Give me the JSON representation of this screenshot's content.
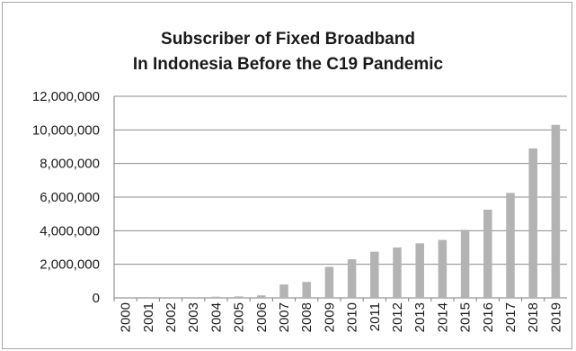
{
  "chart_data": {
    "type": "bar",
    "title_lines": [
      "Subscriber of Fixed Broadband",
      "In Indonesia Before the C19 Pandemic"
    ],
    "xlabel": "",
    "ylabel": "",
    "ylim": [
      0,
      12000000
    ],
    "yticks": [
      0,
      2000000,
      4000000,
      6000000,
      8000000,
      10000000,
      12000000
    ],
    "ytick_labels": [
      "0",
      "2,000,000",
      "4,000,000",
      "6,000,000",
      "8,000,000",
      "10,000,000",
      "12,000,000"
    ],
    "categories": [
      "2000",
      "2001",
      "2002",
      "2003",
      "2004",
      "2005",
      "2006",
      "2007",
      "2008",
      "2009",
      "2010",
      "2011",
      "2012",
      "2013",
      "2014",
      "2015",
      "2016",
      "2017",
      "2018",
      "2019"
    ],
    "values": [
      0,
      0,
      0,
      0,
      70000,
      90000,
      150000,
      800000,
      950000,
      1850000,
      2300000,
      2750000,
      3000000,
      3250000,
      3450000,
      4050000,
      5250000,
      6250000,
      8900000,
      10300000
    ],
    "grid": true,
    "legend": "none",
    "bar_color": "#b3b3b3",
    "grid_color": "#8c8c8c"
  }
}
